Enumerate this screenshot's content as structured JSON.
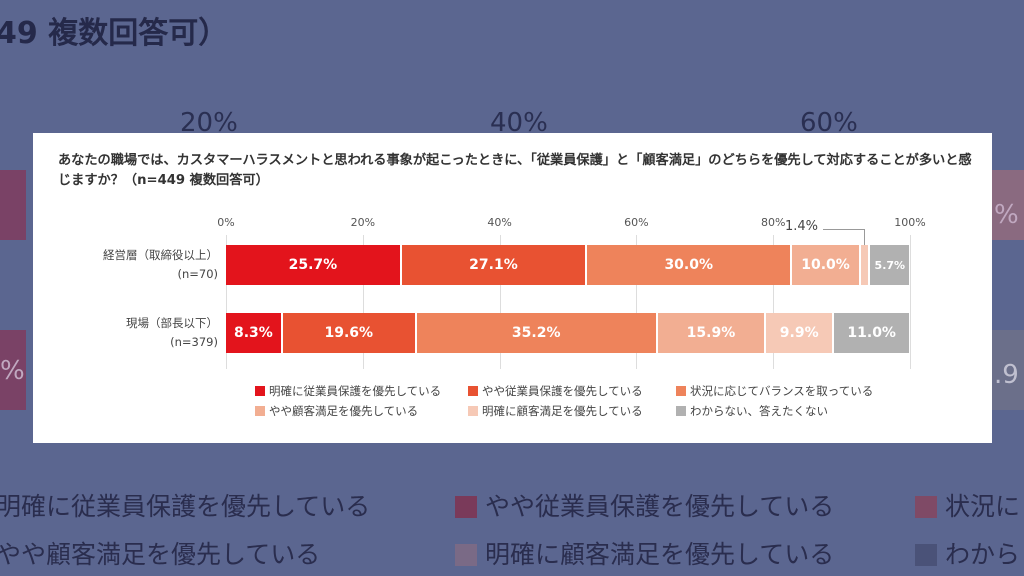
{
  "background": {
    "title_fragment": "49 複数回答可）",
    "ticks": [
      "20%",
      "40%",
      "60%"
    ],
    "edge_labels": [
      "%",
      "%",
      ".9"
    ],
    "legend": [
      "明確に従業員保護を優先している",
      "やや従業員保護を優先している",
      "状況に",
      "やや顧客満足を優先している",
      "明確に顧客満足を優先している",
      "わから"
    ]
  },
  "chart_data": {
    "type": "bar",
    "orientation": "horizontal-stacked-100",
    "title": "あなたの職場では、カスタマーハラスメントと思われる事象が起こったときに、「従業員保護」と「顧客満足」のどちらを優先して対応することが多いと感じますか？（n=449 複数回答可）",
    "ticks": [
      "0%",
      "20%",
      "40%",
      "60%",
      "80%",
      "100%"
    ],
    "xlim": [
      0,
      100
    ],
    "categories": [
      "経営層（取締役以上）\n(n=70)",
      "現場（部長以下）\n(n=379)"
    ],
    "category_lines": [
      [
        "経営層（取締役以上）",
        "(n=70)"
      ],
      [
        "現場（部長以下）",
        "(n=379)"
      ]
    ],
    "series": [
      {
        "name": "明確に従業員保護を優先している",
        "color": "#e3141c",
        "values": [
          25.7,
          8.3
        ],
        "labels": [
          "25.7%",
          "8.3%"
        ]
      },
      {
        "name": "やや従業員保護を優先している",
        "color": "#e85232",
        "values": [
          27.1,
          19.6
        ],
        "labels": [
          "27.1%",
          "19.6%"
        ]
      },
      {
        "name": "状況に応じてバランスを取っている",
        "color": "#ee835b",
        "values": [
          30.0,
          35.2
        ],
        "labels": [
          "30.0%",
          "35.2%"
        ]
      },
      {
        "name": "やや顧客満足を優先している",
        "color": "#f2ae92",
        "values": [
          10.0,
          15.9
        ],
        "labels": [
          "10.0%",
          "15.9%"
        ]
      },
      {
        "name": "明確に顧客満足を優先している",
        "color": "#f6c9b6",
        "values": [
          1.4,
          9.9
        ],
        "labels": [
          "",
          "9.9%"
        ]
      },
      {
        "name": "わからない、答えたくない",
        "color": "#b1b1b1",
        "values": [
          5.7,
          11.0
        ],
        "labels": [
          "5.7%",
          "11.0%"
        ]
      }
    ],
    "callout": "1.4%",
    "legend_placement": "bottom"
  }
}
